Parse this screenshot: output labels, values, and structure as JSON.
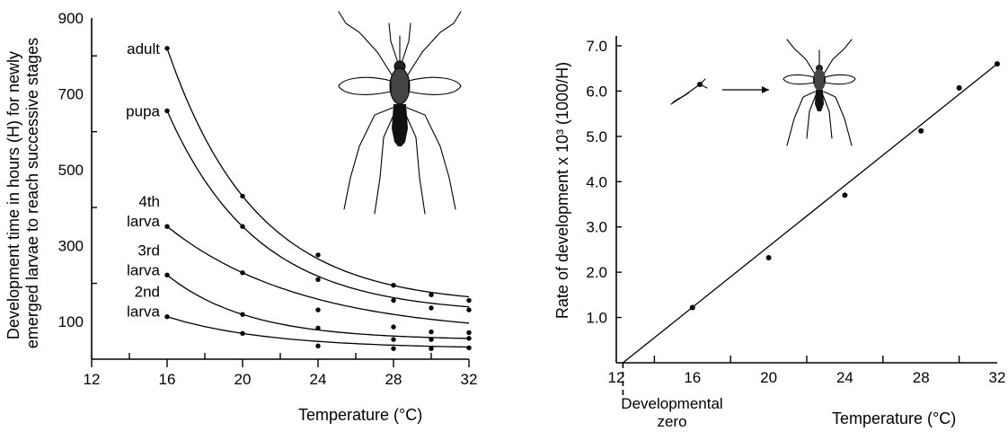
{
  "chart_data": [
    {
      "type": "line",
      "title": "",
      "xlabel": "Temperature (°C)",
      "ylabel": [
        "Development time in hours (H) for newly",
        "emerged larvae to reach successive stages"
      ],
      "xlim": [
        12,
        32
      ],
      "ylim": [
        0,
        900
      ],
      "x_ticks": [
        12,
        16,
        20,
        24,
        28,
        32
      ],
      "x_minor_ticks": [
        14,
        18,
        22,
        26,
        30
      ],
      "y_ticks": [
        100,
        300,
        500,
        700,
        900
      ],
      "y_minor_ticks": [
        200,
        400,
        600,
        800
      ],
      "grid": false,
      "series": [
        {
          "name": "adult",
          "label": [
            "adult"
          ],
          "x": [
            16,
            20,
            24,
            28,
            30,
            32
          ],
          "y": [
            820,
            430,
            275,
            195,
            170,
            155
          ]
        },
        {
          "name": "pupa",
          "label": [
            "pupa"
          ],
          "x": [
            16,
            20,
            24,
            28,
            30,
            32
          ],
          "y": [
            655,
            350,
            210,
            155,
            135,
            130
          ]
        },
        {
          "name": "4th larva",
          "label": [
            "4th",
            "larva"
          ],
          "x": [
            16,
            20,
            24,
            28,
            30,
            32
          ],
          "y": [
            350,
            228,
            130,
            85,
            72,
            70
          ]
        },
        {
          "name": "3rd larva",
          "label": [
            "3rd",
            "larva"
          ],
          "x": [
            16,
            20,
            24,
            28,
            30,
            32
          ],
          "y": [
            222,
            118,
            82,
            52,
            52,
            55
          ]
        },
        {
          "name": "2nd larva",
          "label": [
            "2nd",
            "larva"
          ],
          "x": [
            16,
            20,
            24,
            28,
            30,
            32
          ],
          "y": [
            112,
            68,
            35,
            28,
            28,
            30
          ]
        }
      ]
    },
    {
      "type": "scatter",
      "title": "",
      "xlabel": "Temperature (°C)",
      "ylabel": "Rate of development x 10³ (1000/H)",
      "xlim": [
        12,
        32
      ],
      "ylim": [
        0,
        7
      ],
      "x_ticks": [
        12,
        16,
        20,
        24,
        28,
        32
      ],
      "x_minor_ticks": [
        14,
        18,
        22,
        26,
        30
      ],
      "y_ticks": [
        1.0,
        2.0,
        3.0,
        4.0,
        5.0,
        6.0,
        7.0
      ],
      "grid": false,
      "points": {
        "x": [
          16,
          20,
          24,
          28,
          30,
          32
        ],
        "y": [
          1.22,
          2.32,
          3.7,
          5.12,
          6.07,
          6.6
        ]
      },
      "fit_line": {
        "x": [
          12.35,
          32
        ],
        "y": [
          0,
          6.6
        ]
      },
      "annotation": {
        "text": [
          "Developmental",
          "zero"
        ],
        "x": 12.35
      }
    }
  ]
}
